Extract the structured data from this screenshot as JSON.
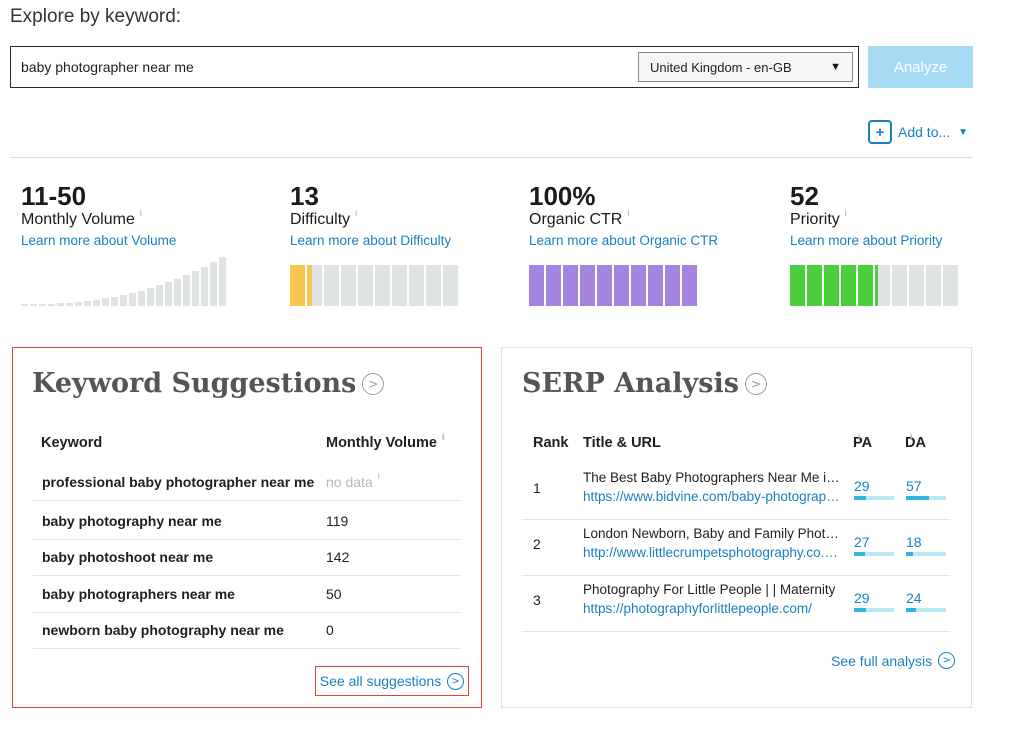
{
  "page_title": "Explore by keyword:",
  "search": {
    "value": "baby photographer near me",
    "locale_selected": "United Kingdom - en-GB",
    "analyze_label": "Analyze"
  },
  "add_to": {
    "label": "Add to..."
  },
  "metrics": {
    "volume": {
      "value": "11-50",
      "label": "Monthly Volume",
      "link": "Learn more about Volume"
    },
    "difficulty": {
      "value": "13",
      "label": "Difficulty",
      "link": "Learn more about Difficulty",
      "score": 13,
      "color": "#f9c74f"
    },
    "ctr": {
      "value": "100%",
      "label": "Organic CTR",
      "link": "Learn more about Organic CTR",
      "score": 100,
      "color": "#a583e0"
    },
    "priority": {
      "value": "52",
      "label": "Priority",
      "link": "Learn more about Priority",
      "score": 52,
      "color": "#4ccd3e"
    }
  },
  "keyword_suggestions": {
    "title": "Keyword Suggestions",
    "col_keyword": "Keyword",
    "col_volume": "Monthly Volume",
    "rows": [
      {
        "keyword": "professional baby photographer near me",
        "volume": "no data"
      },
      {
        "keyword": "baby photography near me",
        "volume": "119"
      },
      {
        "keyword": "baby photoshoot near me",
        "volume": "142"
      },
      {
        "keyword": "baby photographers near me",
        "volume": "50"
      },
      {
        "keyword": "newborn baby photography near me",
        "volume": "0"
      }
    ],
    "see_all_label": "See all suggestions"
  },
  "serp_analysis": {
    "title": "SERP Analysis",
    "col_rank": "Rank",
    "col_title": "Title & URL",
    "col_pa": "PA",
    "col_da": "DA",
    "rows": [
      {
        "rank": "1",
        "title": "The Best Baby Photographers Near Me in London",
        "url": "https://www.bidvine.com/baby-photographers/london",
        "pa": "29",
        "da": "57"
      },
      {
        "rank": "2",
        "title": "London Newborn, Baby and Family Photographer",
        "url": "http://www.littlecrumpetsphotography.co.uk/",
        "pa": "27",
        "da": "18"
      },
      {
        "rank": "3",
        "title": "Photography For Little People | | Maternity",
        "url": "https://photographyforlittlepeople.com/",
        "pa": "29",
        "da": "24"
      }
    ],
    "see_full_label": "See full analysis"
  },
  "icons": {
    "info": "info-icon",
    "circle_arrow": "circle-arrow-right-icon",
    "plus": "plus-icon",
    "caret": "caret-down-icon"
  }
}
